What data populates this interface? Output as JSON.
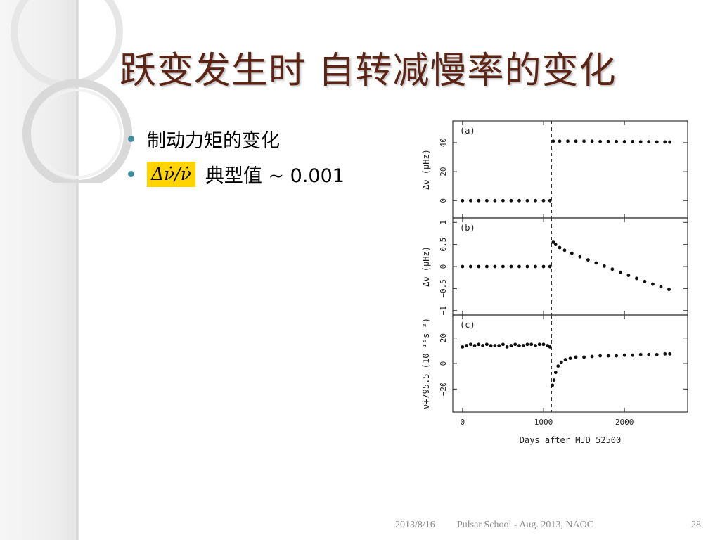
{
  "slide": {
    "title": "跃变发生时 自转减慢率的变化",
    "bullets": [
      {
        "text": "制动力矩的变化"
      },
      {
        "formula": "Δν̇/ν̇",
        "text": "典型值 ~ 0.001"
      }
    ]
  },
  "footer": {
    "date": "2013/8/16",
    "center": "Pulsar School  - Aug. 2013, NAOC",
    "page": "28"
  },
  "colors": {
    "title": "#5b2414",
    "bullet": "#3f8ea0",
    "highlight": "#ffd400"
  },
  "chart_data": [
    {
      "type": "scatter",
      "panel_label": "(a)",
      "ylabel": "Δν (μHz)",
      "ylim": [
        -12,
        55
      ],
      "yticks": [
        0,
        20,
        40
      ],
      "glitch_epoch": 1100,
      "series": [
        {
          "x": [
            0,
            100,
            200,
            300,
            400,
            500,
            600,
            700,
            800,
            900,
            1000,
            1080
          ],
          "y": [
            0,
            0,
            0,
            0,
            0,
            0,
            0,
            0,
            0,
            0,
            0,
            0
          ]
        },
        {
          "x": [
            1120,
            1200,
            1300,
            1400,
            1500,
            1600,
            1700,
            1800,
            1900,
            2000,
            2100,
            2200,
            2300,
            2400,
            2500,
            2560
          ],
          "y": [
            41,
            41,
            41,
            41,
            41,
            41,
            40.8,
            40.8,
            40.8,
            40.7,
            40.7,
            40.6,
            40.6,
            40.5,
            40.5,
            40.4
          ]
        }
      ],
      "xlim": [
        -120,
        2780
      ]
    },
    {
      "type": "scatter",
      "panel_label": "(b)",
      "ylabel": "Δν (μHz)",
      "ylim": [
        -1.1,
        1.1
      ],
      "yticks": [
        -1,
        -0.5,
        0,
        0.5,
        1
      ],
      "yticklabels": [
        "−1",
        "−0.5",
        "0",
        "0.5",
        "1"
      ],
      "glitch_epoch": 1100,
      "series": [
        {
          "x": [
            0,
            100,
            200,
            300,
            400,
            500,
            600,
            700,
            800,
            900,
            1000,
            1080
          ],
          "y": [
            0,
            0,
            0,
            0,
            0,
            0,
            0,
            0,
            0,
            0,
            0,
            0
          ]
        },
        {
          "x": [
            1120,
            1150,
            1200,
            1260,
            1350,
            1450,
            1550,
            1650,
            1750,
            1850,
            1950,
            2050,
            2150,
            2250,
            2350,
            2450,
            2550
          ],
          "y": [
            0.55,
            0.5,
            0.43,
            0.37,
            0.3,
            0.22,
            0.15,
            0.08,
            0.01,
            -0.06,
            -0.13,
            -0.2,
            -0.27,
            -0.34,
            -0.4,
            -0.46,
            -0.52
          ]
        }
      ],
      "xlim": [
        -120,
        2780
      ]
    },
    {
      "type": "scatter",
      "panel_label": "(c)",
      "ylabel": "ν̇+795.5 (10⁻¹⁵s⁻²)",
      "ylim": [
        -38,
        38
      ],
      "yticks": [
        -20,
        0,
        20
      ],
      "yticklabels": [
        "−20",
        "0",
        "20"
      ],
      "xticks": [
        0,
        1000,
        2000
      ],
      "xlabel": "Days after MJD 52500",
      "glitch_epoch": 1100,
      "series": [
        {
          "x": [
            0,
            50,
            100,
            150,
            200,
            250,
            300,
            350,
            400,
            450,
            500,
            550,
            600,
            650,
            700,
            750,
            800,
            850,
            900,
            950,
            1000,
            1050,
            1080
          ],
          "y": [
            13,
            14,
            15,
            14,
            15,
            14,
            15,
            14,
            14,
            14,
            15,
            13,
            14,
            15,
            14,
            14,
            15,
            15,
            14,
            15,
            15,
            14,
            13
          ]
        },
        {
          "x": [
            1110,
            1130,
            1150,
            1180,
            1220,
            1270,
            1330,
            1400,
            1500,
            1600,
            1700,
            1800,
            1900,
            2000,
            2100,
            2200,
            2300,
            2400,
            2500,
            2560
          ],
          "y": [
            -17,
            -13,
            -7,
            -2,
            1,
            3,
            4,
            5,
            5,
            5.5,
            6,
            6,
            6,
            6.5,
            6.5,
            7,
            7,
            7,
            7.5,
            7.5
          ]
        }
      ],
      "xlim": [
        -120,
        2780
      ]
    }
  ]
}
